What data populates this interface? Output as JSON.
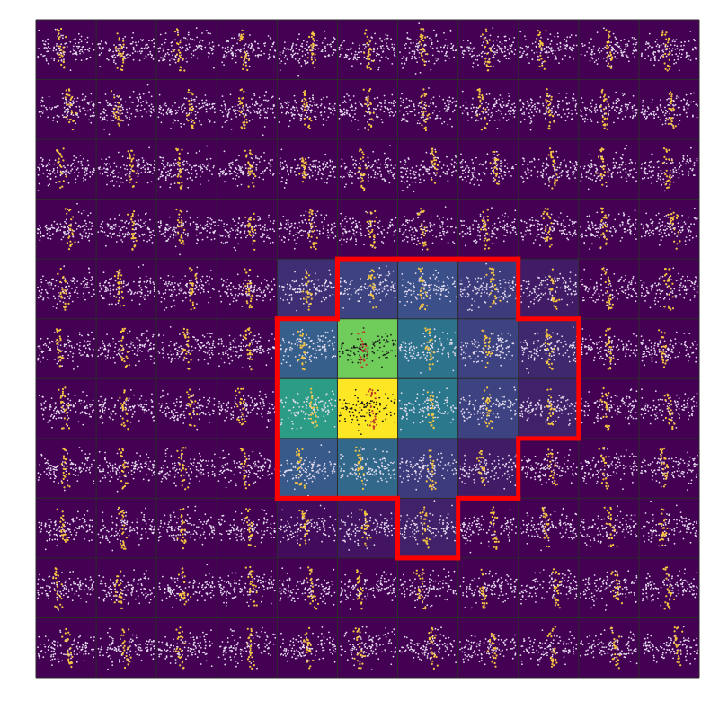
{
  "chart_data": {
    "type": "heatmap",
    "title": "",
    "xlabel": "",
    "ylabel": "",
    "grid": true,
    "legend": "none",
    "rows": 11,
    "cols": 11,
    "values": [
      [
        0,
        0,
        0,
        0,
        0,
        0,
        0,
        0,
        0,
        0,
        0
      ],
      [
        0,
        0,
        0,
        0,
        0,
        0,
        0,
        0,
        0,
        0,
        0
      ],
      [
        0,
        0,
        0,
        0,
        0,
        0,
        0,
        0,
        0,
        0,
        0
      ],
      [
        0,
        0,
        0,
        0,
        0,
        0,
        0,
        0,
        0,
        0,
        0
      ],
      [
        0,
        0,
        0,
        0,
        0.14,
        0.2,
        0.24,
        0.18,
        0.08,
        0,
        0
      ],
      [
        0,
        0,
        0,
        0,
        0.3,
        0.78,
        0.38,
        0.2,
        0.12,
        0,
        0
      ],
      [
        0,
        0,
        0,
        0,
        0.55,
        1.0,
        0.4,
        0.2,
        0.1,
        0,
        0
      ],
      [
        0,
        0,
        0,
        0,
        0.28,
        0.34,
        0.18,
        0.08,
        0,
        0,
        0
      ],
      [
        0,
        0,
        0,
        0,
        0.03,
        0.06,
        0.1,
        0,
        0,
        0,
        0
      ],
      [
        0,
        0,
        0,
        0,
        0,
        0,
        0,
        0,
        0,
        0,
        0
      ],
      [
        0,
        0,
        0,
        0,
        0,
        0,
        0,
        0,
        0,
        0,
        0
      ]
    ],
    "highlight_region_cells": [
      [
        4,
        5
      ],
      [
        4,
        6
      ],
      [
        4,
        7
      ],
      [
        5,
        4
      ],
      [
        5,
        5
      ],
      [
        5,
        6
      ],
      [
        5,
        7
      ],
      [
        5,
        8
      ],
      [
        6,
        4
      ],
      [
        6,
        5
      ],
      [
        6,
        6
      ],
      [
        6,
        7
      ],
      [
        6,
        8
      ],
      [
        7,
        4
      ],
      [
        7,
        5
      ],
      [
        7,
        6
      ],
      [
        7,
        7
      ],
      [
        8,
        6
      ]
    ],
    "highlight_color": "#ff0000",
    "colormap": "viridis",
    "point_colors": {
      "background_points": "#e6ddf0",
      "band_points_on_bright": "#1a1a1a",
      "highlight_points": "#f5c542",
      "highlight_points_on_bright": "#c0392b"
    }
  }
}
